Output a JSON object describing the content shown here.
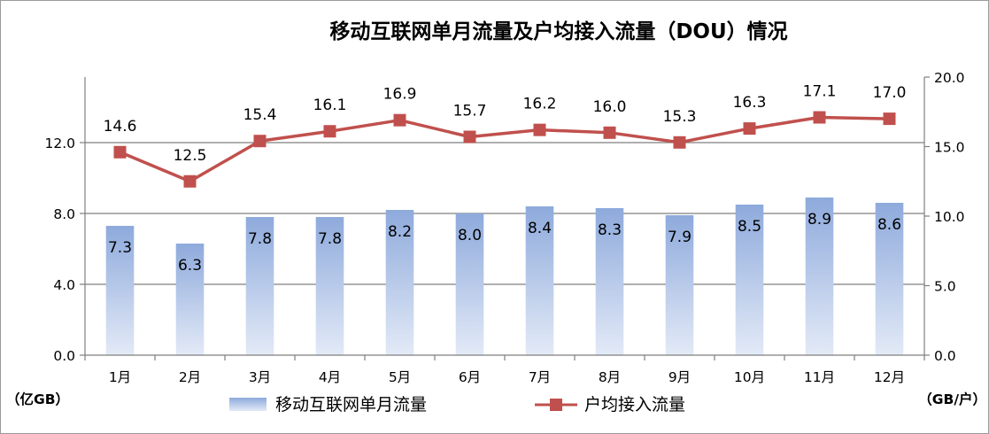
{
  "chart_data": {
    "type": "bar+line",
    "title": "移动互联网单月流量及户均接入流量（DOU）情况",
    "categories": [
      "1月",
      "2月",
      "3月",
      "4月",
      "5月",
      "6月",
      "7月",
      "8月",
      "9月",
      "10月",
      "11月",
      "12月"
    ],
    "left_axis": {
      "unit": "（亿GB）",
      "ylim": [
        0,
        15.7
      ],
      "ticks": [
        "0.0",
        "4.0",
        "8.0",
        "12.0"
      ],
      "tick_values": [
        0,
        4,
        8,
        12
      ]
    },
    "right_axis": {
      "unit": "（GB/户）",
      "ylim": [
        0,
        20
      ],
      "ticks": [
        "0.0",
        "5.0",
        "10.0",
        "15.0",
        "20.0"
      ],
      "tick_values": [
        0,
        5,
        10,
        15,
        20
      ]
    },
    "series": [
      {
        "name": "移动互联网单月流量",
        "type": "bar",
        "axis": "left",
        "color_top": "#8eaadc",
        "color_bottom": "#e3eaf7",
        "values": [
          7.3,
          6.3,
          7.8,
          7.8,
          8.2,
          8.0,
          8.4,
          8.3,
          7.9,
          8.5,
          8.9,
          8.6
        ],
        "labels": [
          "7.3",
          "6.3",
          "7.8",
          "7.8",
          "8.2",
          "8.0",
          "8.4",
          "8.3",
          "7.9",
          "8.5",
          "8.9",
          "8.6"
        ]
      },
      {
        "name": "户均接入流量",
        "type": "line",
        "axis": "right",
        "color": "#c0504d",
        "values": [
          14.6,
          12.5,
          15.4,
          16.1,
          16.9,
          15.7,
          16.2,
          16.0,
          15.3,
          16.3,
          17.1,
          17.0
        ],
        "labels": [
          "14.6",
          "12.5",
          "15.4",
          "16.1",
          "16.9",
          "15.7",
          "16.2",
          "16.0",
          "15.3",
          "16.3",
          "17.1",
          "17.0"
        ]
      }
    ],
    "gridlines": true,
    "legend": "bottom"
  }
}
